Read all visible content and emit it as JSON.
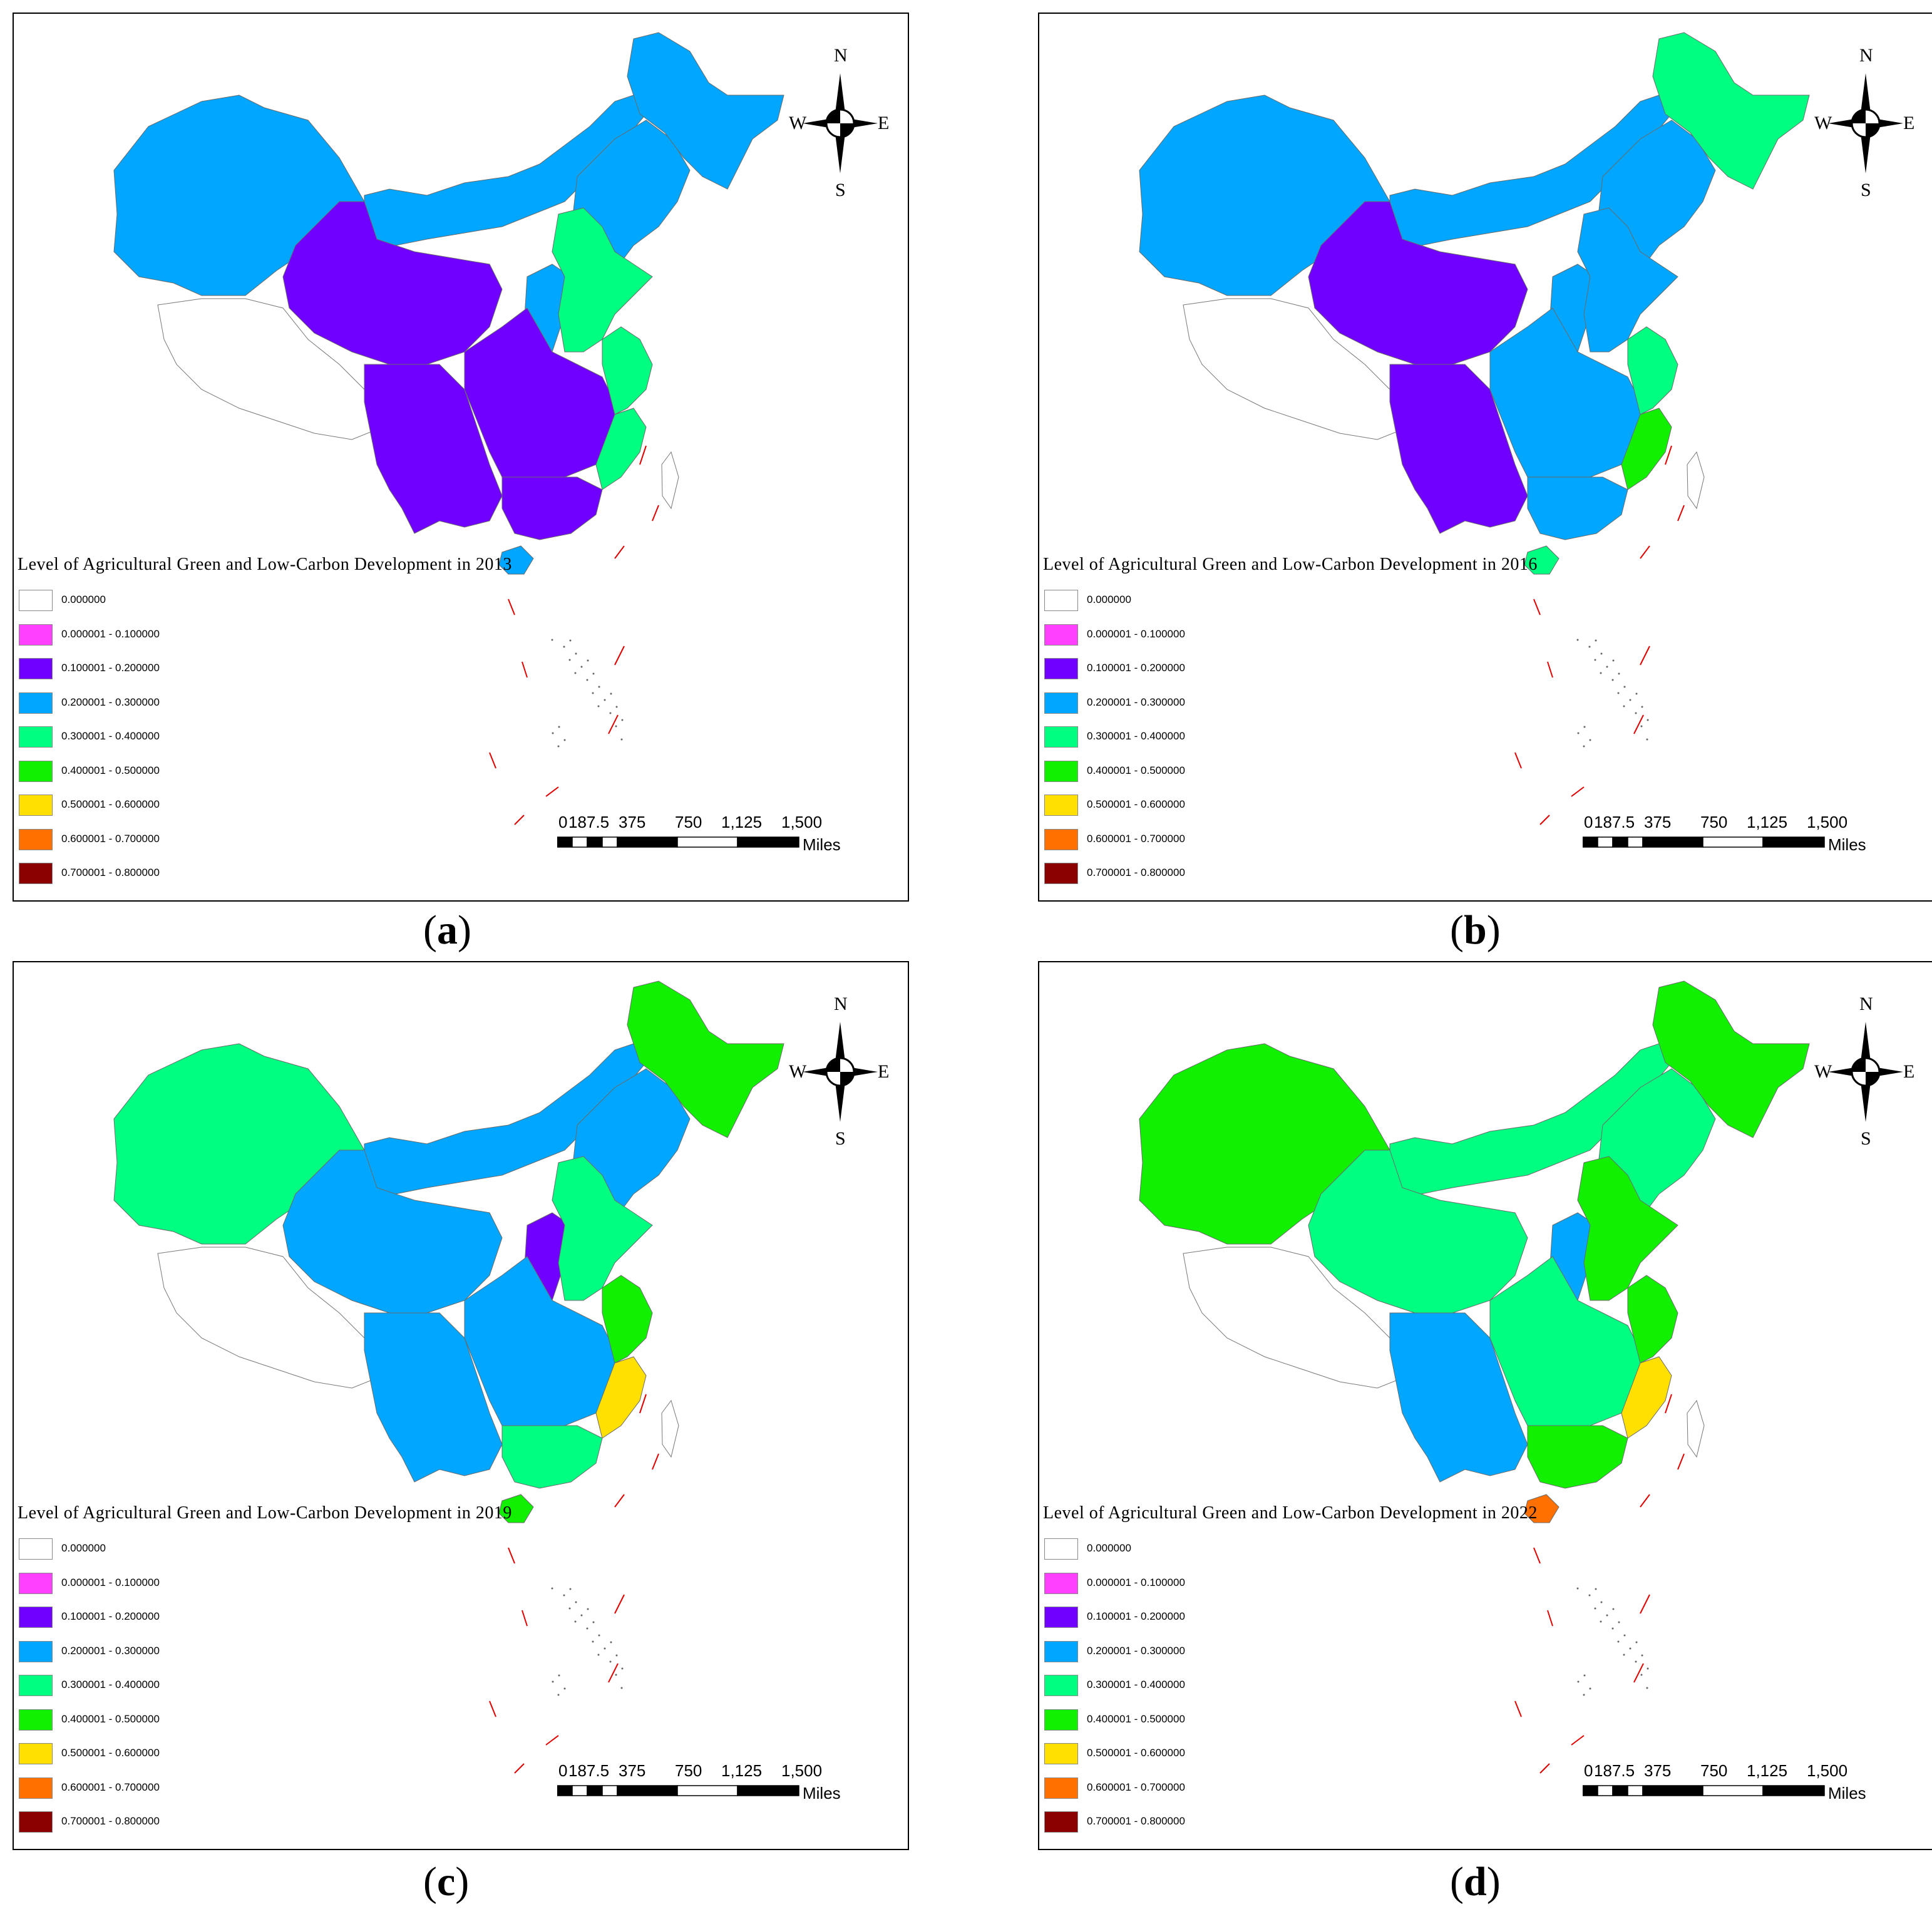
{
  "compass": {
    "n": "N",
    "s": "S",
    "w": "W",
    "e": "E"
  },
  "scale": {
    "ticks": [
      "0",
      "187.5",
      "375",
      "750",
      "1,125",
      "1,500"
    ],
    "unit": "Miles"
  },
  "legend_items": [
    {
      "label": "0.000000",
      "color": "#ffffff"
    },
    {
      "label": "0.000001 - 0.100000",
      "color": "#ff40ff"
    },
    {
      "label": "0.100001 - 0.200000",
      "color": "#7000ff"
    },
    {
      "label": "0.200001 - 0.300000",
      "color": "#00a6ff"
    },
    {
      "label": "0.300001 - 0.400000",
      "color": "#00ff80"
    },
    {
      "label": "0.400001 - 0.500000",
      "color": "#10f000"
    },
    {
      "label": "0.500001 - 0.600000",
      "color": "#ffe000"
    },
    {
      "label": "0.600001 - 0.700000",
      "color": "#ff7000"
    },
    {
      "label": "0.700001 - 0.800000",
      "color": "#8b0000"
    }
  ],
  "panels": [
    {
      "id": "a",
      "caption_letter": "a",
      "title": "Level of Agricultural Green and Low-Carbon Development in 2013",
      "regions": {
        "northwest": 3,
        "inner_mongolia": 3,
        "northeast": 3,
        "heilongjiang": 3,
        "tibet": 0,
        "qinghai_gansu": 2,
        "southwest": 2,
        "central": 2,
        "south": 2,
        "north_china": 4,
        "east_coast": 4,
        "fujian": 4,
        "hainan": 3,
        "shanxi_strip": 3
      }
    },
    {
      "id": "b",
      "caption_letter": "b",
      "title": "Level of Agricultural Green and Low-Carbon Development in 2016",
      "regions": {
        "northwest": 3,
        "inner_mongolia": 3,
        "northeast": 3,
        "heilongjiang": 4,
        "tibet": 0,
        "qinghai_gansu": 2,
        "southwest": 2,
        "central": 3,
        "south": 3,
        "north_china": 3,
        "east_coast": 4,
        "fujian": 5,
        "hainan": 4,
        "shanxi_strip": 3
      }
    },
    {
      "id": "c",
      "caption_letter": "c",
      "title": "Level of Agricultural Green and Low-Carbon Development in 2019",
      "regions": {
        "northwest": 4,
        "inner_mongolia": 3,
        "northeast": 3,
        "heilongjiang": 5,
        "tibet": 0,
        "qinghai_gansu": 3,
        "southwest": 3,
        "central": 3,
        "south": 4,
        "north_china": 4,
        "east_coast": 5,
        "fujian": 6,
        "hainan": 5,
        "shanxi_strip": 2
      }
    },
    {
      "id": "d",
      "caption_letter": "d",
      "title": "Level of Agricultural Green and Low-Carbon Development in 2022",
      "regions": {
        "northwest": 5,
        "inner_mongolia": 4,
        "northeast": 4,
        "heilongjiang": 5,
        "tibet": 0,
        "qinghai_gansu": 4,
        "southwest": 3,
        "central": 4,
        "south": 5,
        "north_china": 5,
        "east_coast": 5,
        "fujian": 6,
        "hainan": 7,
        "shanxi_strip": 3
      }
    }
  ]
}
